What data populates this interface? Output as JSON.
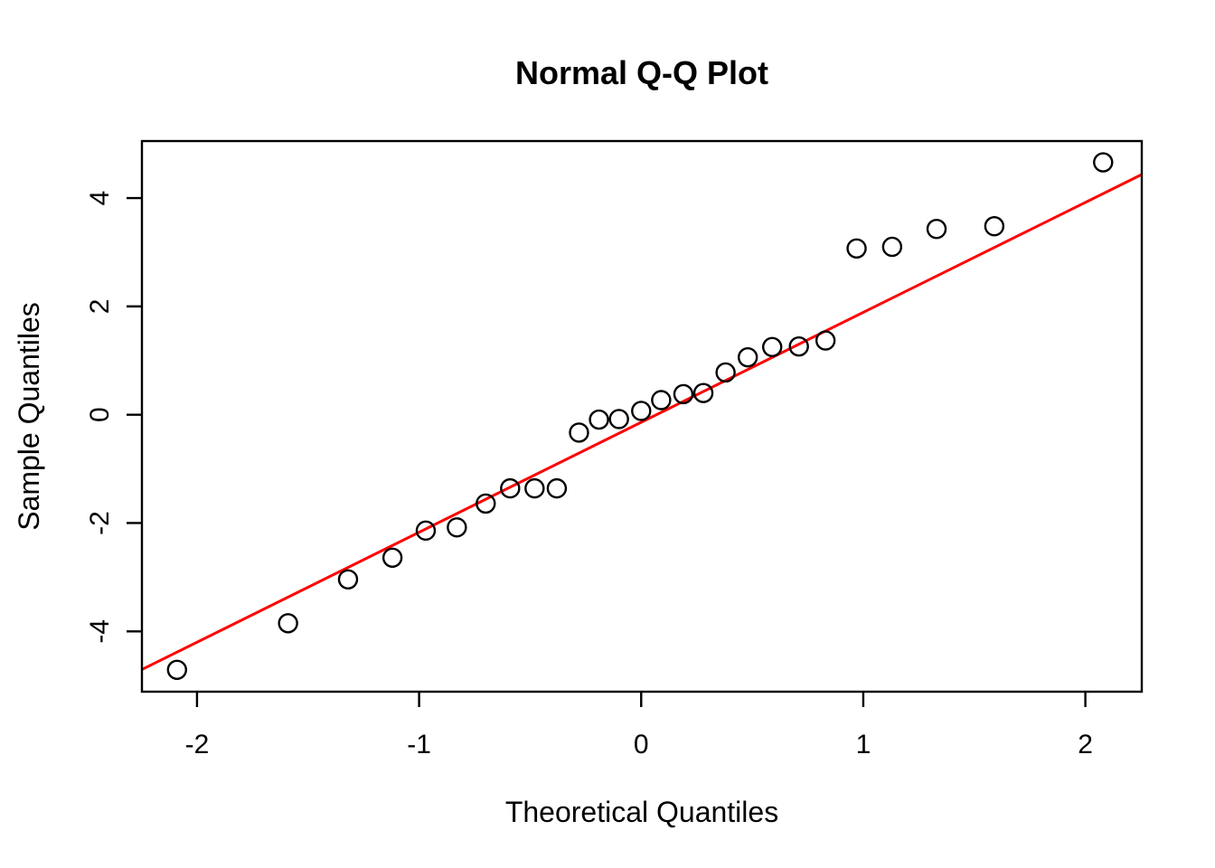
{
  "colors": {
    "background": "#FFFFFF",
    "foreground": "#000000",
    "reference_line": "#FF0000"
  },
  "chart_data": {
    "type": "scatter",
    "title": "Normal Q-Q Plot",
    "xlabel": "Theoretical Quantiles",
    "ylabel": "Sample Quantiles",
    "xlim": [
      -2.248,
      2.254
    ],
    "ylim": [
      -5.114,
      5.053
    ],
    "x_ticks": [
      -2,
      -1,
      0,
      1,
      2
    ],
    "x_tick_labels": [
      "-2",
      "-1",
      "0",
      "1",
      "2"
    ],
    "y_ticks": [
      -4,
      -2,
      0,
      2,
      4
    ],
    "y_tick_labels": [
      "-4",
      "-2",
      "0",
      "2",
      "4"
    ],
    "grid": false,
    "legend": null,
    "marker": "open-circle",
    "points": [
      [
        -2.09,
        -4.71
      ],
      [
        -1.59,
        -3.85
      ],
      [
        -1.32,
        -3.04
      ],
      [
        -1.12,
        -2.64
      ],
      [
        -0.97,
        -2.14
      ],
      [
        -0.83,
        -2.08
      ],
      [
        -0.7,
        -1.64
      ],
      [
        -0.59,
        -1.36
      ],
      [
        -0.48,
        -1.36
      ],
      [
        -0.38,
        -1.36
      ],
      [
        -0.28,
        -0.33
      ],
      [
        -0.19,
        -0.09
      ],
      [
        -0.1,
        -0.08
      ],
      [
        0.0,
        0.07
      ],
      [
        0.09,
        0.27
      ],
      [
        0.19,
        0.38
      ],
      [
        0.28,
        0.4
      ],
      [
        0.38,
        0.78
      ],
      [
        0.48,
        1.06
      ],
      [
        0.59,
        1.25
      ],
      [
        0.71,
        1.26
      ],
      [
        0.83,
        1.37
      ],
      [
        0.97,
        3.07
      ],
      [
        1.13,
        3.1
      ],
      [
        1.33,
        3.43
      ],
      [
        1.59,
        3.48
      ],
      [
        2.08,
        4.66
      ]
    ],
    "reference_line": {
      "slope": 2.03,
      "intercept": -0.14
    }
  }
}
